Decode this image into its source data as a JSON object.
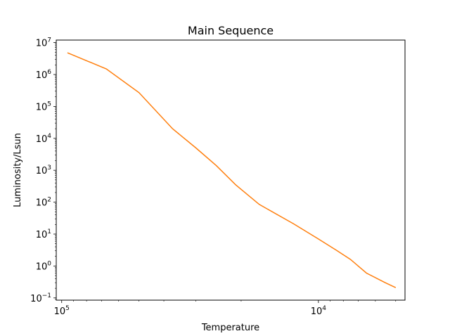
{
  "chart_data": {
    "type": "line",
    "title": "Main Sequence",
    "xlabel": "Temperature",
    "ylabel": "Luminosity/Lsun",
    "x_scale": "log",
    "x_inverted": true,
    "y_scale": "log",
    "xlim": [
      105000,
      4600
    ],
    "ylim": [
      0.085,
      12000000
    ],
    "grid": false,
    "legend": "none",
    "line_color": "#ff7f0e",
    "x_major_ticks": [
      {
        "value": 100000,
        "base": "10",
        "exp": "5"
      },
      {
        "value": 10000,
        "base": "10",
        "exp": "4"
      }
    ],
    "y_major_ticks": [
      {
        "value": 0.1,
        "base": "10",
        "exp": "−1"
      },
      {
        "value": 1,
        "base": "10",
        "exp": "0"
      },
      {
        "value": 10,
        "base": "10",
        "exp": "1"
      },
      {
        "value": 100,
        "base": "10",
        "exp": "2"
      },
      {
        "value": 1000,
        "base": "10",
        "exp": "3"
      },
      {
        "value": 10000,
        "base": "10",
        "exp": "4"
      },
      {
        "value": 100000,
        "base": "10",
        "exp": "5"
      },
      {
        "value": 1000000,
        "base": "10",
        "exp": "6"
      },
      {
        "value": 10000000,
        "base": "10",
        "exp": "7"
      }
    ],
    "series": [
      {
        "x": [
          95000,
          67000,
          50000,
          37000,
          30000,
          25000,
          21000,
          17000,
          12500,
          10000,
          8500,
          7500,
          6500,
          5500,
          5000
        ],
        "y": [
          4800000,
          1500000,
          270000,
          20000,
          5000,
          1400,
          350,
          85,
          21,
          7,
          3.1,
          1.6,
          0.6,
          0.3,
          0.21
        ]
      }
    ]
  }
}
